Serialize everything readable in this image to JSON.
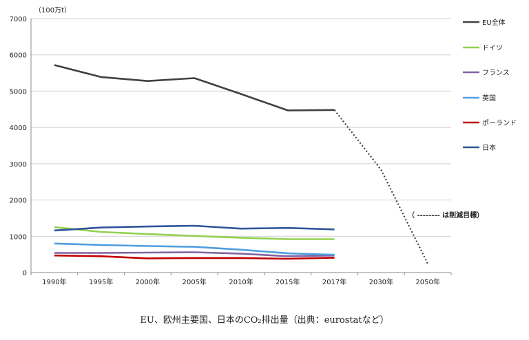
{
  "chart_data": {
    "type": "line",
    "unit_label": "（100万t）",
    "caption": "EU、欧州主要国、日本のCO₂排出量（出典：eurostatなど）",
    "annotation": "（ -------- は削減目標）",
    "categories": [
      "1990年",
      "1995年",
      "2000年",
      "2005年",
      "2010年",
      "2015年",
      "2017年",
      "2030年",
      "2050年"
    ],
    "ylim": [
      0,
      7000
    ],
    "yticks": [
      0,
      1000,
      2000,
      3000,
      4000,
      5000,
      6000,
      7000
    ],
    "grid": true,
    "legend_position": "right",
    "series": [
      {
        "name": "EU全体",
        "color": "#404040",
        "values": [
          5720,
          5390,
          5280,
          5360,
          4920,
          4470,
          4480,
          null,
          null
        ]
      },
      {
        "name": "ドイツ",
        "color": "#92d050",
        "values": [
          1250,
          1120,
          1060,
          1010,
          960,
          920,
          920,
          null,
          null
        ]
      },
      {
        "name": "フランス",
        "color": "#8064a2",
        "values": [
          540,
          540,
          550,
          560,
          520,
          450,
          470,
          null,
          null
        ]
      },
      {
        "name": "英国",
        "color": "#4f9ee0",
        "values": [
          800,
          760,
          730,
          710,
          630,
          530,
          490,
          null,
          null
        ]
      },
      {
        "name": "ポーランド",
        "color": "#c00000",
        "values": [
          470,
          450,
          390,
          400,
          400,
          380,
          410,
          null,
          null
        ]
      },
      {
        "name": "日本",
        "color": "#2f5597",
        "values": [
          1160,
          1240,
          1270,
          1290,
          1210,
          1230,
          1190,
          null,
          null
        ]
      }
    ],
    "target": {
      "color": "#404040",
      "values": [
        null,
        null,
        null,
        null,
        null,
        null,
        4480,
        2830,
        240
      ]
    }
  }
}
